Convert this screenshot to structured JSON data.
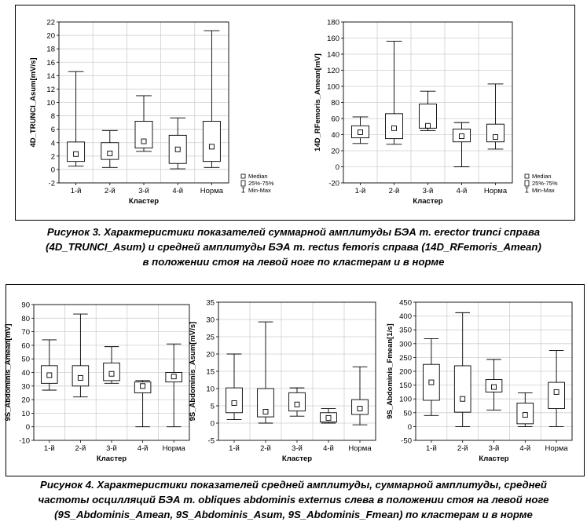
{
  "figure3": {
    "caption_lines": [
      "Рисунок 3. Характеристики показателей суммарной амплитуды БЭА m. erector trunci справа",
      "(4D_TRUNCI_Asum) и средней амплитуды БЭА m. rectus femoris справа (14D_RFemoris_Amean)",
      "в положении стоя на левой ноге по кластерам и в норме"
    ]
  },
  "figure4": {
    "caption_lines": [
      "Рисунок 4. Характеристики показателей средней амплитуды, суммарной амплитуды, средней",
      "частоты осцилляций БЭА m. obliques abdominis externus слева в положении стоя на левой ноге",
      "(9S_Abdominis_Amean, 9S_Abdominis_Asum, 9S_Abdominis_Fmean) по кластерам и в норме"
    ]
  },
  "chart_data": [
    {
      "id": "c1",
      "type": "box",
      "ylabel": "4D_TRUNCI_Asum[mV/s]",
      "xlabel": "Кластер",
      "categories": [
        "1-й",
        "2-й",
        "3-й",
        "4-й",
        "Норма"
      ],
      "ylim": [
        -2,
        22
      ],
      "yticks": [
        -2,
        0,
        2,
        4,
        6,
        8,
        10,
        12,
        14,
        16,
        18,
        20,
        22
      ],
      "boxes": [
        {
          "min": 0.5,
          "q1": 1.2,
          "median": 2.3,
          "q3": 4.1,
          "max": 14.6
        },
        {
          "min": 0.3,
          "q1": 1.5,
          "median": 2.4,
          "q3": 4.0,
          "max": 5.8
        },
        {
          "min": 2.7,
          "q1": 3.2,
          "median": 4.2,
          "q3": 7.2,
          "max": 11.0
        },
        {
          "min": 0.1,
          "q1": 0.9,
          "median": 3.0,
          "q3": 5.1,
          "max": 7.7
        },
        {
          "min": 0.3,
          "q1": 1.2,
          "median": 3.4,
          "q3": 7.2,
          "max": 20.7
        }
      ],
      "legend": [
        "Median",
        "25%-75%",
        "Min-Max"
      ]
    },
    {
      "id": "c2",
      "type": "box",
      "ylabel": "14D_RFemoris_Amean[mV]",
      "xlabel": "Кластер",
      "categories": [
        "1-й",
        "2-й",
        "3-й",
        "4-й",
        "Норма"
      ],
      "ylim": [
        -20,
        180
      ],
      "yticks": [
        -20,
        0,
        20,
        40,
        60,
        80,
        100,
        120,
        140,
        160,
        180
      ],
      "boxes": [
        {
          "min": 29,
          "q1": 36,
          "median": 43,
          "q3": 51,
          "max": 62
        },
        {
          "min": 28,
          "q1": 35,
          "median": 48,
          "q3": 66,
          "max": 156
        },
        {
          "min": 45,
          "q1": 48,
          "median": 51,
          "q3": 78,
          "max": 94
        },
        {
          "min": 0,
          "q1": 31,
          "median": 38,
          "q3": 47,
          "max": 55
        },
        {
          "min": 22,
          "q1": 31,
          "median": 37,
          "q3": 53,
          "max": 103
        }
      ],
      "legend": [
        "Median",
        "25%-75%",
        "Min-Max"
      ]
    },
    {
      "id": "c3",
      "type": "box",
      "ylabel": "9S_Abdominis_Amean[mV]",
      "xlabel": "Кластер",
      "categories": [
        "1-й",
        "2-й",
        "3-й",
        "4-й",
        "Норма"
      ],
      "ylim": [
        -10,
        90
      ],
      "yticks": [
        -10,
        0,
        10,
        20,
        30,
        40,
        50,
        60,
        70,
        80,
        90
      ],
      "boxes": [
        {
          "min": 27,
          "q1": 32,
          "median": 38,
          "q3": 45,
          "max": 64
        },
        {
          "min": 22,
          "q1": 30,
          "median": 36,
          "q3": 45,
          "max": 83
        },
        {
          "min": 32,
          "q1": 34,
          "median": 39,
          "q3": 47,
          "max": 59
        },
        {
          "min": 0,
          "q1": 25,
          "median": 30,
          "q3": 33,
          "max": 34
        },
        {
          "min": 0,
          "q1": 33,
          "median": 37,
          "q3": 40,
          "max": 61
        }
      ]
    },
    {
      "id": "c4",
      "type": "box",
      "ylabel": "9S_Abdominis_Asum[mV/s]",
      "xlabel": "Кластер",
      "categories": [
        "1-й",
        "2-й",
        "3-й",
        "4-й",
        "Норма"
      ],
      "ylim": [
        -5,
        35
      ],
      "yticks": [
        -5,
        0,
        5,
        10,
        15,
        20,
        25,
        30,
        35
      ],
      "boxes": [
        {
          "min": 1.0,
          "q1": 3.0,
          "median": 5.8,
          "q3": 10.2,
          "max": 20.0
        },
        {
          "min": 0.0,
          "q1": 1.8,
          "median": 3.3,
          "q3": 10.0,
          "max": 29.3
        },
        {
          "min": 2.0,
          "q1": 3.5,
          "median": 5.4,
          "q3": 8.8,
          "max": 10.2
        },
        {
          "min": 0.0,
          "q1": 0.3,
          "median": 1.5,
          "q3": 3.0,
          "max": 4.2
        },
        {
          "min": -0.5,
          "q1": 2.5,
          "median": 4.2,
          "q3": 6.8,
          "max": 16.3
        }
      ]
    },
    {
      "id": "c5",
      "type": "box",
      "ylabel": "9S_Abdominis_Fmean[1/s]",
      "xlabel": "Кластер",
      "categories": [
        "1-й",
        "2-й",
        "3-й",
        "4-й",
        "Норма"
      ],
      "ylim": [
        -50,
        450
      ],
      "yticks": [
        -50,
        0,
        50,
        100,
        150,
        200,
        250,
        300,
        350,
        400,
        450
      ],
      "boxes": [
        {
          "min": 40,
          "q1": 95,
          "median": 160,
          "q3": 225,
          "max": 318
        },
        {
          "min": 0,
          "q1": 52,
          "median": 100,
          "q3": 220,
          "max": 412
        },
        {
          "min": 60,
          "q1": 125,
          "median": 143,
          "q3": 170,
          "max": 243
        },
        {
          "min": 0,
          "q1": 10,
          "median": 42,
          "q3": 85,
          "max": 122
        },
        {
          "min": 0,
          "q1": 65,
          "median": 125,
          "q3": 160,
          "max": 275
        }
      ]
    }
  ]
}
